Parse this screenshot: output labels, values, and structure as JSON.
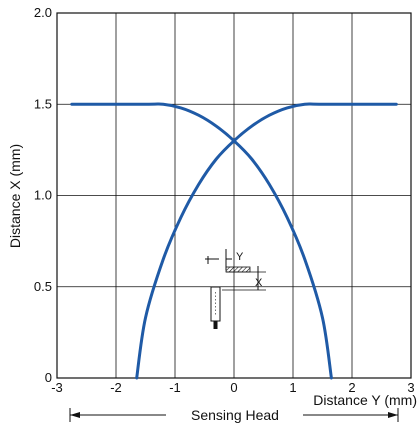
{
  "chart_data": {
    "type": "line",
    "xlabel": "Distance Y (mm)",
    "ylabel": "Distance X (mm)",
    "xlim": [
      -3,
      3
    ],
    "ylim": [
      0,
      2.0
    ],
    "x_ticks": [
      "-3",
      "-2",
      "-1",
      "0",
      "1",
      "2",
      "3"
    ],
    "y_ticks": [
      "0",
      "0.5",
      "1.0",
      "1.5",
      "2.0"
    ],
    "grid": true,
    "line_color": "#1f5aa6",
    "series": [
      {
        "x": [
          -1.65,
          -1.5,
          -1.2,
          -0.9,
          -0.6,
          -0.3,
          0.0,
          0.3,
          0.6,
          0.9,
          1.2,
          1.5,
          2.75
        ],
        "values": [
          0.0,
          0.33,
          0.65,
          0.88,
          1.06,
          1.2,
          1.3,
          1.38,
          1.44,
          1.48,
          1.5,
          1.5,
          1.5
        ]
      },
      {
        "x": [
          -2.75,
          -1.5,
          -1.2,
          -0.9,
          -0.6,
          -0.3,
          0.0,
          0.3,
          0.6,
          0.9,
          1.2,
          1.5,
          1.65
        ],
        "values": [
          1.5,
          1.5,
          1.5,
          1.48,
          1.44,
          1.38,
          1.3,
          1.2,
          1.06,
          0.88,
          0.65,
          0.33,
          0.0
        ]
      }
    ]
  },
  "inset": {
    "label_y": "Y",
    "label_x": "X"
  },
  "footer": {
    "sensing_head_label": "Sensing Head"
  }
}
